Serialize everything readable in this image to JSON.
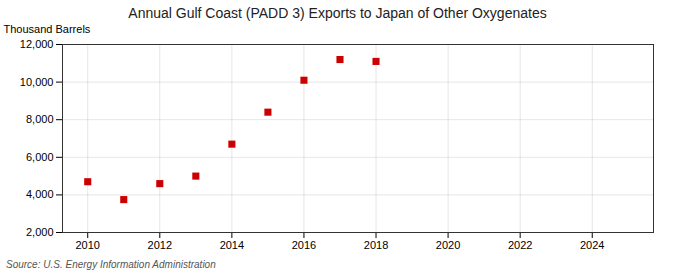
{
  "chart_data": {
    "type": "scatter",
    "title": "Annual Gulf Coast (PADD 3) Exports to Japan of Other Oxygenates",
    "ylabel": "Thousand Barrels",
    "source": "Source: U.S. Energy Information Administration",
    "x": [
      2010,
      2011,
      2012,
      2013,
      2014,
      2015,
      2016,
      2017,
      2018
    ],
    "values": [
      4700,
      3750,
      4600,
      5000,
      6700,
      8400,
      10100,
      11200,
      11100
    ],
    "color": "#cc0000",
    "marker": "square",
    "xlim": [
      2009.3,
      2025.7
    ],
    "ylim": [
      2000,
      12000
    ],
    "xticks": [
      2010,
      2012,
      2014,
      2016,
      2018,
      2020,
      2022,
      2024
    ],
    "yticks": [
      {
        "value": 2000,
        "label": "2,000"
      },
      {
        "value": 4000,
        "label": "4,000"
      },
      {
        "value": 6000,
        "label": "6,000"
      },
      {
        "value": 8000,
        "label": "8,000"
      },
      {
        "value": 10000,
        "label": "10,000"
      },
      {
        "value": 12000,
        "label": "12,000"
      }
    ],
    "grid": true
  }
}
